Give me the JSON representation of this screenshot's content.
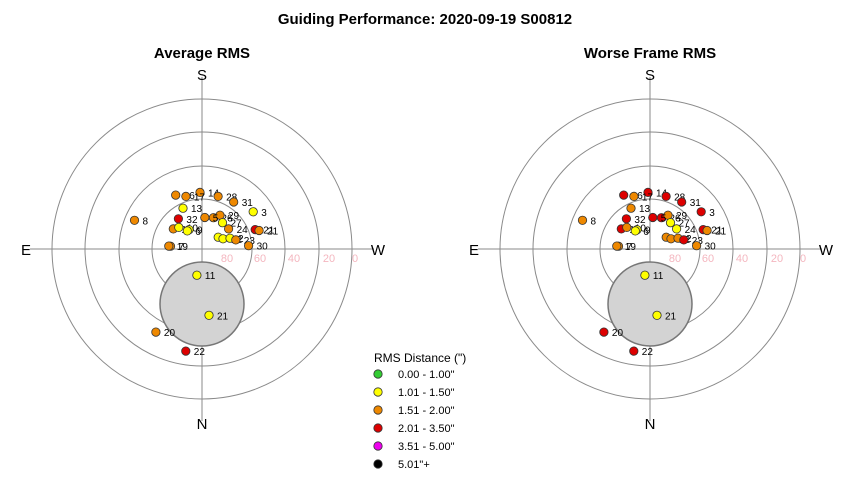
{
  "title": "Guiding Performance: 2020-09-19 S00812",
  "compass": {
    "north": "N",
    "south": "S",
    "east": "E",
    "west": "W"
  },
  "ring_labels": [
    "80",
    "60",
    "40",
    "20",
    "0"
  ],
  "legend": {
    "title": "RMS Distance (\")",
    "entries": [
      {
        "label": "0.00 - 1.00\"",
        "color": "#33cc33"
      },
      {
        "label": "1.01 - 1.50\"",
        "color": "#ffff00"
      },
      {
        "label": "1.51 - 2.00\"",
        "color": "#ee8800"
      },
      {
        "label": "2.01 - 3.50\"",
        "color": "#dd0000"
      },
      {
        "label": "3.51 - 5.00\"",
        "color": "#ee00ee"
      },
      {
        "label": "5.01\"+",
        "color": "#000000"
      }
    ]
  },
  "chart_data": [
    {
      "type": "scatter",
      "projection": "polar",
      "title": "Average RMS",
      "radial_axis": "altitude (deg)",
      "altitude_range": [
        0,
        90
      ],
      "azimuth_orientation": {
        "top": "S",
        "right": "W",
        "bottom": "N",
        "left": "E"
      },
      "points": [
        {
          "label": "14",
          "az": 178,
          "alt": 56,
          "class": 2
        },
        {
          "label": "28",
          "az": 197,
          "alt": 57,
          "class": 2
        },
        {
          "label": "31",
          "az": 214,
          "alt": 56,
          "class": 2
        },
        {
          "label": "3",
          "az": 234,
          "alt": 52,
          "class": 1
        },
        {
          "label": "16",
          "az": 154,
          "alt": 54,
          "class": 2
        },
        {
          "label": "17",
          "az": 163,
          "alt": 57,
          "class": 2
        },
        {
          "label": "13",
          "az": 155,
          "alt": 63,
          "class": 1
        },
        {
          "label": "26",
          "az": 200,
          "alt": 70,
          "class": 2
        },
        {
          "label": "29",
          "az": 208,
          "alt": 67,
          "class": 2
        },
        {
          "label": "32",
          "az": 142,
          "alt": 67,
          "class": 3
        },
        {
          "label": "5",
          "az": 185,
          "alt": 71,
          "class": 2
        },
        {
          "label": "27",
          "az": 218,
          "alt": 70,
          "class": 1
        },
        {
          "label": "8",
          "az": 113,
          "alt": 46,
          "class": 2
        },
        {
          "label": "24",
          "az": 233,
          "alt": 70,
          "class": 2
        },
        {
          "label": "21",
          "az": 250,
          "alt": 56,
          "class": 3
        },
        {
          "label": "21",
          "az": 252,
          "alt": 54,
          "class": 2
        },
        {
          "label": "18",
          "az": 125,
          "alt": 69,
          "class": 2
        },
        {
          "label": "10",
          "az": 133,
          "alt": 71,
          "class": 1
        },
        {
          "label": "9",
          "az": 146,
          "alt": 76,
          "class": 1
        },
        {
          "label": "4",
          "az": 234,
          "alt": 78,
          "class": 1
        },
        {
          "label": "12",
          "az": 244,
          "alt": 76,
          "class": 1
        },
        {
          "label": "2",
          "az": 249,
          "alt": 72,
          "class": 1
        },
        {
          "label": "23",
          "az": 255,
          "alt": 69,
          "class": 2
        },
        {
          "label": "6",
          "az": 141,
          "alt": 76,
          "class": 1
        },
        {
          "label": "7",
          "az": 95,
          "alt": 71,
          "class": 2
        },
        {
          "label": "19",
          "az": 95,
          "alt": 70,
          "class": 2
        },
        {
          "label": "11",
          "az": 11,
          "alt": 74,
          "class": 1
        },
        {
          "label": "21",
          "az": 354,
          "alt": 50,
          "class": 1
        },
        {
          "label": "20",
          "az": 29,
          "alt": 33,
          "class": 2
        },
        {
          "label": "22",
          "az": 9,
          "alt": 28,
          "class": 3
        },
        {
          "label": "30",
          "az": 266,
          "alt": 62,
          "class": 2
        }
      ]
    },
    {
      "type": "scatter",
      "projection": "polar",
      "title": "Worse Frame RMS",
      "radial_axis": "altitude (deg)",
      "altitude_range": [
        0,
        90
      ],
      "azimuth_orientation": {
        "top": "S",
        "right": "W",
        "bottom": "N",
        "left": "E"
      },
      "points": [
        {
          "label": "14",
          "az": 178,
          "alt": 56,
          "class": 3
        },
        {
          "label": "28",
          "az": 197,
          "alt": 57,
          "class": 3
        },
        {
          "label": "31",
          "az": 214,
          "alt": 56,
          "class": 3
        },
        {
          "label": "3",
          "az": 234,
          "alt": 52,
          "class": 3
        },
        {
          "label": "16",
          "az": 154,
          "alt": 54,
          "class": 3
        },
        {
          "label": "17",
          "az": 163,
          "alt": 57,
          "class": 2
        },
        {
          "label": "13",
          "az": 155,
          "alt": 63,
          "class": 2
        },
        {
          "label": "26",
          "az": 200,
          "alt": 70,
          "class": 3
        },
        {
          "label": "29",
          "az": 208,
          "alt": 67,
          "class": 2
        },
        {
          "label": "32",
          "az": 142,
          "alt": 67,
          "class": 3
        },
        {
          "label": "5",
          "az": 185,
          "alt": 71,
          "class": 3
        },
        {
          "label": "27",
          "az": 218,
          "alt": 70,
          "class": 1
        },
        {
          "label": "8",
          "az": 113,
          "alt": 46,
          "class": 2
        },
        {
          "label": "24",
          "az": 233,
          "alt": 70,
          "class": 1
        },
        {
          "label": "21",
          "az": 250,
          "alt": 56,
          "class": 3
        },
        {
          "label": "21",
          "az": 252,
          "alt": 54,
          "class": 2
        },
        {
          "label": "18",
          "az": 125,
          "alt": 69,
          "class": 3
        },
        {
          "label": "10",
          "az": 133,
          "alt": 71,
          "class": 2
        },
        {
          "label": "9",
          "az": 146,
          "alt": 76,
          "class": 1
        },
        {
          "label": "4",
          "az": 234,
          "alt": 78,
          "class": 2
        },
        {
          "label": "12",
          "az": 244,
          "alt": 76,
          "class": 2
        },
        {
          "label": "2",
          "az": 249,
          "alt": 72,
          "class": 2
        },
        {
          "label": "23",
          "az": 255,
          "alt": 69,
          "class": 3
        },
        {
          "label": "6",
          "az": 141,
          "alt": 76,
          "class": 1
        },
        {
          "label": "7",
          "az": 95,
          "alt": 71,
          "class": 2
        },
        {
          "label": "19",
          "az": 95,
          "alt": 70,
          "class": 2
        },
        {
          "label": "11",
          "az": 11,
          "alt": 74,
          "class": 1
        },
        {
          "label": "21",
          "az": 354,
          "alt": 50,
          "class": 1
        },
        {
          "label": "20",
          "az": 29,
          "alt": 33,
          "class": 3
        },
        {
          "label": "22",
          "az": 9,
          "alt": 28,
          "class": 3
        },
        {
          "label": "30",
          "az": 266,
          "alt": 62,
          "class": 2
        }
      ]
    }
  ]
}
